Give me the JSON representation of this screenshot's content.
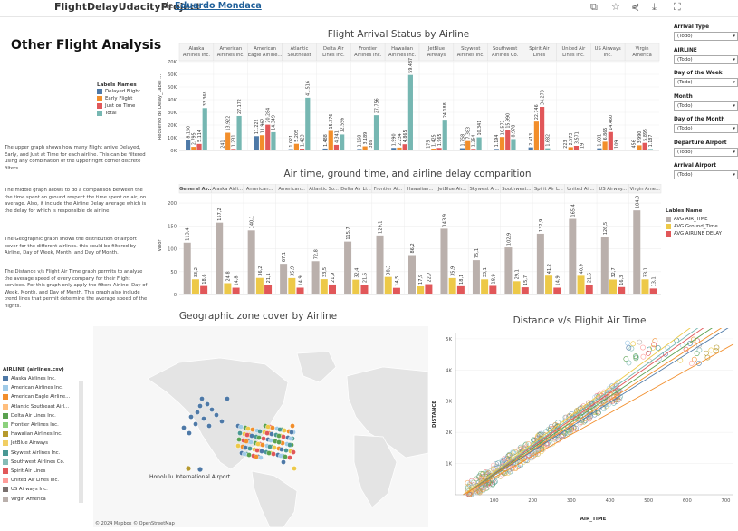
{
  "header": {
    "project": "FlightDelayUdacityProject",
    "by": "de",
    "author": "Eduardo Mondaca",
    "icons": [
      "copy-icon",
      "star-icon",
      "share-icon",
      "download-icon",
      "fullscreen-icon"
    ]
  },
  "left": {
    "title": "Other Flight Analysis",
    "paragraphs": [
      "The upper graph shows how many Flight arrive Delayed, Early, and Just at Time for each airline. This can be filtered using any combination of the upper right corner discrete filters.",
      "The middle graph allows to do a comparison between the the time spent on ground respect the time spent on air, on average. Also, it include the Airline Delay average which is the delay for which is responsible de airline.",
      "The Geographic graph shows the distribution of airport cover for the different airlines. this could be filtered by Airline, Day of Week, Month, and Day of Month.",
      "The Distance v/s Flight Air Time graph permits to analyze the average speed of every company for their Flight services. For this graph only apply the filters Airline, Day of Week, Month, and Day of Month. This graph also include trend lines that permit determine the average speed of the flights."
    ]
  },
  "filters": [
    {
      "label": "Arrival Type",
      "value": "(Todo)"
    },
    {
      "label": "AIRLINE",
      "value": "(Todo)"
    },
    {
      "label": "Day of the Week",
      "value": "(Todo)"
    },
    {
      "label": "Month",
      "value": "(Todo)"
    },
    {
      "label": "Day of the Month",
      "value": "(Todo)"
    },
    {
      "label": "Departure Airport",
      "value": "(Todo)"
    },
    {
      "label": "Arrival Airport",
      "value": "(Todo)"
    }
  ],
  "colors": {
    "delayed": "#4e79a7",
    "early": "#f28e2b",
    "just": "#e15759",
    "total": "#76b7b2",
    "air": "#bab0ac",
    "ground": "#edc948",
    "airline_delay": "#e15759"
  },
  "chart_data": [
    {
      "type": "bar",
      "title": "Flight Arrival Status by Airline",
      "ylabel": "Recuento de Delay_Label ...",
      "ylim": [
        0,
        70000
      ],
      "yticks": [
        "0K",
        "10K",
        "20K",
        "30K",
        "40K",
        "50K",
        "60K",
        "70K"
      ],
      "legend_title": "Labels Names",
      "categories": [
        "Alaska Airlines Inc.",
        "American Airlines Inc.",
        "American Eagle Airline...",
        "Atlantic Southeast",
        "Delta Air Lines Inc.",
        "Frontier Airlines Inc.",
        "Hawaiian Airlines Inc.",
        "JetBlue Airways",
        "Skywest Airlines Inc.",
        "Southwest Airlines Co.",
        "Spirit Air Lines",
        "United Air Lines Inc.",
        "US Airways Inc.",
        "Virgin America"
      ],
      "series": [
        {
          "name": "Delayed Flight",
          "values": [
            8150,
            241,
            11222,
            1021,
            1488,
            1168,
            1990,
            175,
            1758,
            1194,
            2413,
            223,
            1681,
            456
          ]
        },
        {
          "name": "Early Flight",
          "values": [
            2795,
            13922,
            11962,
            5205,
            15376,
            3189,
            2234,
            1425,
            7383,
            10572,
            22746,
            2573,
            6865,
            3990
          ]
        },
        {
          "name": "Just on Time",
          "values": [
            5114,
            1231,
            20284,
            1423,
            4341,
            389,
            4865,
            1965,
            1254,
            15990,
            34278,
            3571,
            14460,
            5895
          ]
        },
        {
          "name": "Total",
          "values": [
            33368,
            27172,
            14349,
            41516,
            12556,
            27756,
            59487,
            24188,
            10341,
            8978,
            1682,
            19,
            109,
            1187
          ]
        }
      ],
      "labels": {
        "Delayed Flight": [
          "8.150",
          "241",
          "11.222",
          "1.021",
          "1.488",
          "1.168",
          "1.990",
          "175",
          "1.758",
          "1.194",
          "2.413",
          "223",
          "1.681",
          "456"
        ],
        "Early Flight": [
          "2.795",
          "13.922",
          "11.962",
          "5.205",
          "15.376",
          "3.189",
          "2.234",
          "1.425",
          "7.383",
          "10.572",
          "22.746",
          "2.573",
          "6.865",
          "3.990"
        ],
        "Just on Time": [
          "5.114",
          "1.231",
          "20.284",
          "1.423",
          "4.341",
          "389",
          "4.865",
          "1.965",
          "1.254",
          "15.990",
          "34.278",
          "3.571",
          "14.460",
          "5.895"
        ],
        "Total": [
          "33.368",
          "27.172",
          "14.349",
          "41.516",
          "12.556",
          "27.756",
          "59.487",
          "24.188",
          "10.341",
          "8.978",
          "1.682",
          "19",
          "109",
          "1.187"
        ]
      }
    },
    {
      "type": "bar",
      "title": "Air time, ground time, and airline delay comparition",
      "ylabel": "Valor",
      "ylim": [
        0,
        220
      ],
      "yticks": [
        "0",
        "50",
        "100",
        "150",
        "200"
      ],
      "legend_title": "Lables Name",
      "categories": [
        "General Av..",
        "Alaska Airli...",
        "American...",
        "American...",
        "Atlantic So...",
        "Delta Air Li...",
        "Frontier Ai...",
        "Hawaiian...",
        "JetBlue Air...",
        "Skywest Ai...",
        "Southwest...",
        "Spirit Air L...",
        "United Air...",
        "US Airway...",
        "Virgin Ame..."
      ],
      "series": [
        {
          "name": "AVG AIR_TIME",
          "values": [
            113.4,
            157.2,
            140.1,
            67.1,
            72.8,
            115.7,
            129.1,
            86.2,
            143.9,
            75.1,
            102.9,
            132.9,
            165.4,
            126.5,
            184.0
          ]
        },
        {
          "name": "AVG Ground_Time",
          "values": [
            33.2,
            24.8,
            36.2,
            35.9,
            33.5,
            32.4,
            38.3,
            17.9,
            35.9,
            33.1,
            29.1,
            41.2,
            40.9,
            32.7,
            33.1
          ]
        },
        {
          "name": "AVG AIRLINE DELAY",
          "values": [
            18.6,
            14.8,
            21.1,
            14.9,
            21.9,
            21.6,
            14.5,
            22.7,
            18.1,
            18.9,
            15.7,
            14.9,
            21.6,
            16.3,
            13.1
          ]
        }
      ],
      "labels": {
        "AVG AIR_TIME": [
          "113,4",
          "157,2",
          "140,1",
          "67,1",
          "72,8",
          "115,7",
          "129,1",
          "86,2",
          "143,9",
          "75,1",
          "102,9",
          "132,9",
          "165,4",
          "126,5",
          "184,0"
        ],
        "AVG Ground_Time": [
          "33,2",
          "24,8",
          "36,2",
          "35,9",
          "33,5",
          "32,4",
          "38,3",
          "17,9",
          "35,9",
          "33,1",
          "29,1",
          "41,2",
          "40,9",
          "32,7",
          "33,1"
        ],
        "AVG AIRLINE DELAY": [
          "18,6",
          "14,8",
          "21,1",
          "14,9",
          "21,9",
          "21,6",
          "14,5",
          "22,7",
          "18,1",
          "18,9",
          "15,7",
          "14,9",
          "21,6",
          "16,3",
          "13,1"
        ]
      }
    },
    {
      "type": "scatter",
      "title": "Distance v/s Flighit Air Time",
      "xlabel": "AIR_TIME",
      "ylabel": "DISTANCE",
      "xlim": [
        0,
        720
      ],
      "ylim": [
        0,
        5200
      ],
      "xticks": [
        100,
        200,
        300,
        400,
        500,
        600,
        700
      ],
      "yticks": [
        "1K",
        "2K",
        "3K",
        "4K",
        "5K"
      ]
    }
  ],
  "map": {
    "title": "Geographic zone cover by Airline",
    "annotation": "Honolulu International Airport",
    "attribution": "© 2024 Mapbox © OpenStreetMap",
    "legend_title": "AIRLINE (airlines.csv)",
    "airlines": [
      {
        "name": "Alaska Airlines Inc.",
        "color": "#4e79a7"
      },
      {
        "name": "American Airlines Inc.",
        "color": "#a0cbe8"
      },
      {
        "name": "American Eagle Airline...",
        "color": "#f28e2b"
      },
      {
        "name": "Atlantic Southeast Airl...",
        "color": "#ffbe7d"
      },
      {
        "name": "Delta Air Lines Inc.",
        "color": "#59a14f"
      },
      {
        "name": "Frontier Airlines Inc.",
        "color": "#8cd17d"
      },
      {
        "name": "Hawaiian Airlines Inc.",
        "color": "#b6992d"
      },
      {
        "name": "JetBlue Airways",
        "color": "#f1ce63"
      },
      {
        "name": "Skywest Airlines Inc.",
        "color": "#499894"
      },
      {
        "name": "Southwest Airlines Co.",
        "color": "#86bcb6"
      },
      {
        "name": "Spirit Air Lines",
        "color": "#e15759"
      },
      {
        "name": "United Air Lines Inc.",
        "color": "#ff9d9a"
      },
      {
        "name": "US Airways Inc.",
        "color": "#79706e"
      },
      {
        "name": "Virgin America",
        "color": "#bab0ac"
      }
    ]
  }
}
